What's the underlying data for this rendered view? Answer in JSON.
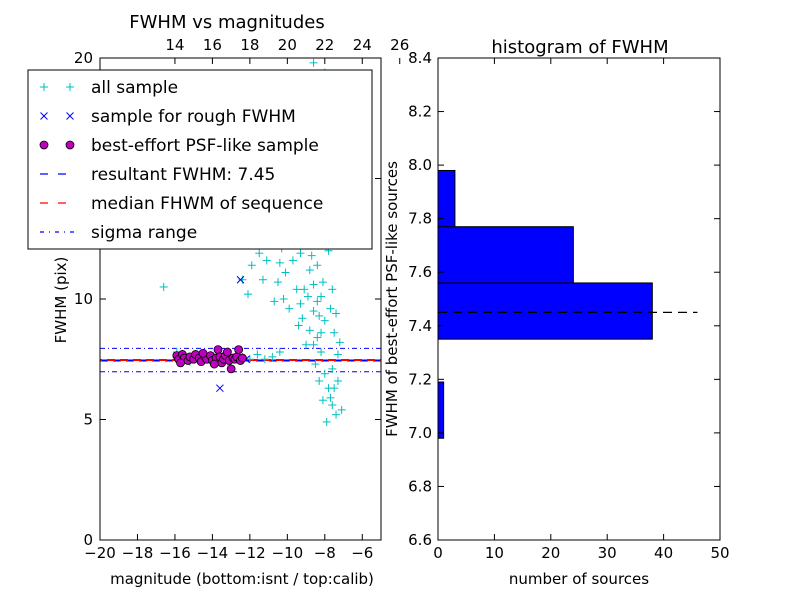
{
  "colors": {
    "all_sample": "#00bfbf",
    "rough": "#0000ff",
    "best": "#bf00bf",
    "resultant": "#0000ff",
    "median": "#ff0000",
    "sigma": "#0000ff",
    "hist_bar": "#0000ff"
  },
  "chart_data": [
    {
      "type": "scatter",
      "title": "FWHM vs magnitudes",
      "xlabel": "magnitude (bottom:isnt / top:calib)",
      "ylabel": "FWHM (pix)",
      "xlim": [
        -20,
        -5
      ],
      "ylim": [
        0,
        20
      ],
      "x_ticks": [
        -20,
        -18,
        -16,
        -14,
        -12,
        -10,
        -8,
        -6
      ],
      "x_tick_labels": [
        "−20",
        "−18",
        "−16",
        "−14",
        "−12",
        "−10",
        "−8",
        "−6"
      ],
      "y_ticks": [
        0,
        5,
        10,
        15,
        20
      ],
      "y_tick_labels": [
        "0",
        "5",
        "10",
        "15",
        "20"
      ],
      "top_axis": {
        "ticks": [
          14,
          16,
          18,
          20,
          22,
          24,
          26
        ],
        "tick_labels": [
          "14",
          "16",
          "18",
          "20",
          "22",
          "24",
          "26"
        ],
        "offset": 30
      },
      "legend": {
        "placement": "upper-left",
        "entries": [
          "all sample",
          "sample for rough FWHM",
          "best-effort PSF-like sample",
          "resultant FWHM: 7.45",
          "median FHWM of sequence",
          "sigma range"
        ]
      },
      "hlines": {
        "resultant": 7.45,
        "median": 7.47,
        "sigma_upper": 7.95,
        "sigma_lower": 6.98
      },
      "series": [
        {
          "name": "all sample",
          "marker": "+",
          "points": [
            [
              -16.6,
              10.5
            ],
            [
              -15.9,
              7.8
            ],
            [
              -15.6,
              7.5
            ],
            [
              -15.2,
              7.4
            ],
            [
              -14.8,
              7.6
            ],
            [
              -14.4,
              7.5
            ],
            [
              -14.0,
              7.5
            ],
            [
              -13.6,
              7.7
            ],
            [
              -13.2,
              7.4
            ],
            [
              -12.8,
              7.5
            ],
            [
              -12.4,
              7.6
            ],
            [
              -12.0,
              7.5
            ],
            [
              -11.6,
              7.7
            ],
            [
              -11.2,
              7.5
            ],
            [
              -10.8,
              7.6
            ],
            [
              -10.4,
              7.8
            ],
            [
              -12.4,
              10.8
            ],
            [
              -12.1,
              10.2
            ],
            [
              -11.9,
              11.4
            ],
            [
              -11.7,
              12.8
            ],
            [
              -11.5,
              11.9
            ],
            [
              -11.3,
              10.8
            ],
            [
              -11.1,
              11.6
            ],
            [
              -10.9,
              12.3
            ],
            [
              -10.7,
              9.9
            ],
            [
              -10.5,
              10.7
            ],
            [
              -10.3,
              12.1
            ],
            [
              -10.1,
              11.1
            ],
            [
              -9.9,
              9.6
            ],
            [
              -9.7,
              13.1
            ],
            [
              -9.5,
              10.4
            ],
            [
              -9.3,
              11.9
            ],
            [
              -9.1,
              13.6
            ],
            [
              -8.9,
              10.1
            ],
            [
              -8.7,
              11.8
            ],
            [
              -8.5,
              12.9
            ],
            [
              -8.3,
              9.3
            ],
            [
              -8.1,
              10.7
            ],
            [
              -7.9,
              12.2
            ],
            [
              -7.7,
              9.6
            ],
            [
              -7.5,
              8.6
            ],
            [
              -7.3,
              7.7
            ],
            [
              -9.4,
              8.9
            ],
            [
              -9.2,
              9.2
            ],
            [
              -9.0,
              8.1
            ],
            [
              -8.8,
              8.7
            ],
            [
              -8.6,
              9.5
            ],
            [
              -8.4,
              8.4
            ],
            [
              -8.2,
              7.8
            ],
            [
              -8.0,
              6.9
            ],
            [
              -7.8,
              6.3
            ],
            [
              -7.6,
              5.6
            ],
            [
              -7.4,
              5.2
            ],
            [
              -7.9,
              4.9
            ],
            [
              -8.1,
              5.8
            ],
            [
              -8.3,
              6.6
            ],
            [
              -8.5,
              7.3
            ],
            [
              -7.7,
              5.9
            ],
            [
              -7.5,
              6.3
            ],
            [
              -8.0,
              19.4
            ],
            [
              -9.0,
              18.1
            ],
            [
              -9.9,
              17.3
            ],
            [
              -8.6,
              19.8
            ],
            [
              -8.3,
              15.2
            ],
            [
              -8.8,
              16.1
            ],
            [
              -9.3,
              14.6
            ],
            [
              -8.1,
              14.3
            ],
            [
              -7.9,
              13.3
            ],
            [
              -8.4,
              17.6
            ],
            [
              -9.6,
              15.9
            ],
            [
              -10.0,
              19.3
            ],
            [
              -9.8,
              12.7
            ],
            [
              -10.6,
              14.1
            ],
            [
              -11.0,
              13.4
            ],
            [
              -11.4,
              14.9
            ],
            [
              -8.2,
              10.1
            ],
            [
              -8.4,
              11.4
            ],
            [
              -8.6,
              10.6
            ],
            [
              -8.0,
              9.1
            ],
            [
              -8.2,
              8.6
            ],
            [
              -8.4,
              9.9
            ],
            [
              -8.6,
              8.1
            ],
            [
              -8.8,
              11.2
            ],
            [
              -9.0,
              12.6
            ],
            [
              -8.7,
              13.7
            ],
            [
              -8.9,
              14.8
            ],
            [
              -8.5,
              15.9
            ],
            [
              -8.1,
              16.7
            ],
            [
              -8.3,
              18.4
            ],
            [
              -7.8,
              12.0
            ],
            [
              -7.6,
              10.4
            ],
            [
              -7.4,
              9.4
            ],
            [
              -7.2,
              8.2
            ],
            [
              -7.1,
              5.4
            ],
            [
              -7.3,
              6.6
            ],
            [
              -7.6,
              7.1
            ],
            [
              -9.1,
              10.4
            ],
            [
              -9.3,
              9.8
            ],
            [
              -9.5,
              12.4
            ],
            [
              -9.7,
              11.6
            ],
            [
              -10.2,
              10.0
            ],
            [
              -10.4,
              11.5
            ]
          ]
        },
        {
          "name": "sample for rough FWHM",
          "marker": "x",
          "points": [
            [
              -13.6,
              6.3
            ],
            [
              -12.5,
              10.8
            ],
            [
              -13.8,
              7.6
            ],
            [
              -13.0,
              7.5
            ],
            [
              -12.2,
              7.5
            ]
          ]
        },
        {
          "name": "best-effort PSF-like sample",
          "marker": "o",
          "points": [
            [
              -15.9,
              7.65
            ],
            [
              -15.8,
              7.5
            ],
            [
              -15.6,
              7.7
            ],
            [
              -15.5,
              7.55
            ],
            [
              -15.3,
              7.45
            ],
            [
              -15.2,
              7.6
            ],
            [
              -15.0,
              7.5
            ],
            [
              -14.9,
              7.7
            ],
            [
              -14.7,
              7.55
            ],
            [
              -14.6,
              7.4
            ],
            [
              -14.4,
              7.6
            ],
            [
              -14.3,
              7.5
            ],
            [
              -14.1,
              7.65
            ],
            [
              -14.0,
              7.45
            ],
            [
              -13.8,
              7.55
            ],
            [
              -13.7,
              7.9
            ],
            [
              -13.6,
              7.6
            ],
            [
              -13.5,
              7.35
            ],
            [
              -13.4,
              7.5
            ],
            [
              -13.3,
              7.65
            ],
            [
              -13.1,
              7.45
            ],
            [
              -13.0,
              7.1
            ],
            [
              -12.9,
              7.55
            ],
            [
              -12.8,
              7.5
            ],
            [
              -12.7,
              7.6
            ],
            [
              -12.6,
              7.9
            ],
            [
              -12.5,
              7.45
            ],
            [
              -12.4,
              7.55
            ],
            [
              -15.7,
              7.35
            ],
            [
              -14.5,
              7.75
            ],
            [
              -13.9,
              7.3
            ],
            [
              -13.2,
              7.8
            ]
          ]
        }
      ]
    },
    {
      "type": "bar",
      "orientation": "horizontal",
      "title": "histogram of FWHM",
      "xlabel": "number of sources",
      "ylabel": "FWHM of best-effort PSF-like sources",
      "xlim": [
        0,
        50
      ],
      "ylim": [
        6.6,
        8.4
      ],
      "x_ticks": [
        0,
        10,
        20,
        30,
        40,
        50
      ],
      "x_tick_labels": [
        "0",
        "10",
        "20",
        "30",
        "40",
        "50"
      ],
      "y_ticks": [
        6.6,
        6.8,
        7.0,
        7.2,
        7.4,
        7.6,
        7.8,
        8.0,
        8.2,
        8.4
      ],
      "y_tick_labels": [
        "6.6",
        "6.8",
        "7.0",
        "7.2",
        "7.4",
        "7.6",
        "7.8",
        "8.0",
        "8.2",
        "8.4"
      ],
      "bins": [
        {
          "from": 6.98,
          "to": 7.19,
          "count": 1
        },
        {
          "from": 7.35,
          "to": 7.56,
          "count": 38
        },
        {
          "from": 7.56,
          "to": 7.77,
          "count": 24
        },
        {
          "from": 7.77,
          "to": 7.98,
          "count": 3
        }
      ],
      "dashed_line": {
        "value": 7.45,
        "to_count": 46
      }
    }
  ]
}
